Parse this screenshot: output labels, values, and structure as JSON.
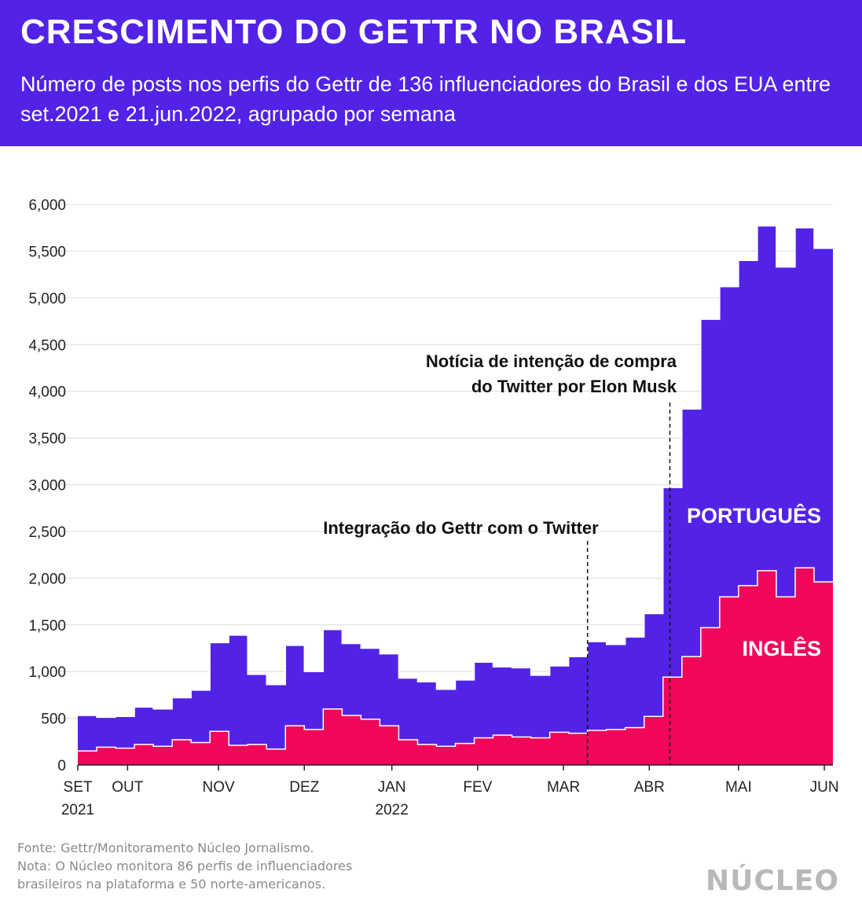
{
  "header": {
    "title": "CRESCIMENTO DO GETTR NO BRASIL",
    "subtitle": "Número de posts nos perfis do Gettr de 136 influenciadores do Brasil e dos EUA entre set.2021 e 21.jun.2022, agrupado por semana"
  },
  "footer": {
    "source": "Fonte: Gettr/Monitoramento Núcleo Jornalismo.",
    "note_line1": "Nota: O Núcleo monitora 86 perfis de influenciadores",
    "note_line2": "brasileiros na plataforma e 50 norte-americanos."
  },
  "logo": "NÚCLEO",
  "chart_data": {
    "type": "area",
    "ylim": [
      0,
      6000
    ],
    "y_ticks": [
      "0",
      "500",
      "1,000",
      "1,500",
      "2,000",
      "2,500",
      "3,000",
      "3,500",
      "4,000",
      "4,500",
      "5,000",
      "5,500",
      "6,000"
    ],
    "x_ticks": [
      {
        "label": "SET",
        "label2": "2021",
        "week": 0
      },
      {
        "label": "OUT",
        "label2": "",
        "week": 2.9
      },
      {
        "label": "NOV",
        "label2": "",
        "week": 8.2
      },
      {
        "label": "DEZ",
        "label2": "",
        "week": 13.2
      },
      {
        "label": "JAN",
        "label2": "2022",
        "week": 18.3
      },
      {
        "label": "FEV",
        "label2": "",
        "week": 23.3
      },
      {
        "label": "MAR",
        "label2": "",
        "week": 28.3
      },
      {
        "label": "ABR",
        "label2": "",
        "week": 33.3
      },
      {
        "label": "MAI",
        "label2": "",
        "week": 38.5
      },
      {
        "label": "JUN",
        "label2": "",
        "week": 43.5
      }
    ],
    "weeks": 44,
    "series": [
      {
        "name": "INGLÊS",
        "color": "#f0075a",
        "values": [
          150,
          190,
          180,
          220,
          200,
          270,
          240,
          360,
          210,
          220,
          170,
          420,
          380,
          600,
          530,
          490,
          420,
          270,
          220,
          200,
          230,
          290,
          320,
          300,
          290,
          350,
          340,
          370,
          380,
          400,
          520,
          940,
          1160,
          1470,
          1800,
          1920,
          2080,
          1800,
          2110,
          1960
        ]
      },
      {
        "name": "PORTUGUÊS",
        "color": "#5223e6",
        "values": [
          380,
          320,
          340,
          400,
          400,
          450,
          560,
          950,
          1180,
          750,
          690,
          860,
          620,
          850,
          770,
          760,
          770,
          660,
          670,
          610,
          680,
          810,
          730,
          740,
          670,
          710,
          820,
          950,
          910,
          970,
          1100,
          2030,
          2650,
          3300,
          3320,
          3480,
          3690,
          3530,
          3640,
          3570
        ]
      }
    ],
    "annotations": [
      {
        "text": "Integração do Gettr com o Twitter",
        "week": 29.7
      },
      {
        "text1": "Notícia de intenção de compra",
        "text2": "do Twitter por Elon Musk",
        "week": 34.5
      }
    ]
  }
}
